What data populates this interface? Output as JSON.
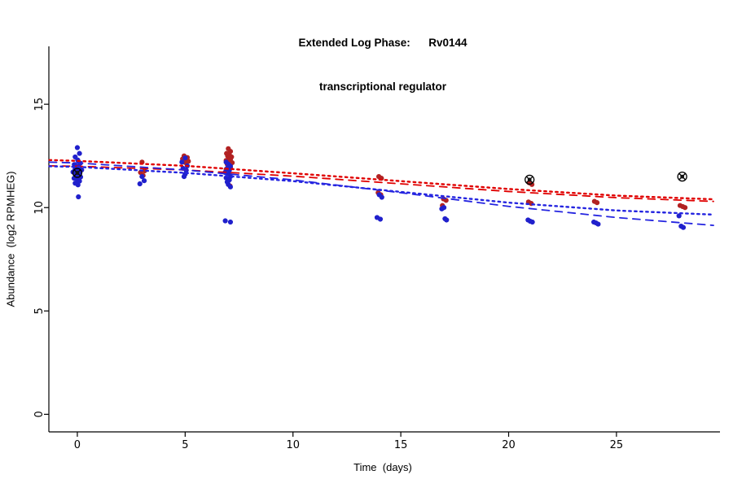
{
  "chart_data": {
    "type": "scatter",
    "title_line1": "Extended Log Phase:      Rv0144",
    "title_line2": "transcriptional regulator",
    "xlabel": "Time  (days)",
    "ylabel": "Abundance  (log2 RPMHEG)",
    "xlim": [
      -1.32,
      29.8
    ],
    "ylim": [
      -0.85,
      17.8
    ],
    "xticks": [
      0,
      5,
      10,
      15,
      20,
      25
    ],
    "yticks": [
      0,
      5,
      10,
      15
    ],
    "grid": false,
    "legend": "none",
    "series": [
      {
        "name": "red-condition-points",
        "color": "#b22222",
        "marker": "dot",
        "points": [
          [
            3,
            12.2
          ],
          [
            3.12,
            11.78
          ],
          [
            2.93,
            11.7
          ],
          [
            3.05,
            11.55
          ],
          [
            4.95,
            12.5
          ],
          [
            5.1,
            12.42
          ],
          [
            4.88,
            12.35
          ],
          [
            5.03,
            12.3
          ],
          [
            5.15,
            12.24
          ],
          [
            5.0,
            12.18
          ],
          [
            7.0,
            12.85
          ],
          [
            7.1,
            12.72
          ],
          [
            6.92,
            12.62
          ],
          [
            7.05,
            12.55
          ],
          [
            6.97,
            12.5
          ],
          [
            7.15,
            12.45
          ],
          [
            7.02,
            12.4
          ],
          [
            7.1,
            12.33
          ],
          [
            6.9,
            12.28
          ],
          [
            7.06,
            12.22
          ],
          [
            7.18,
            12.17
          ],
          [
            6.95,
            12.1
          ],
          [
            7.0,
            12.02
          ],
          [
            7.1,
            11.93
          ],
          [
            6.9,
            11.85
          ],
          [
            7.05,
            11.6
          ],
          [
            7.0,
            11.3
          ],
          [
            7.08,
            11.05
          ],
          [
            13.98,
            11.5
          ],
          [
            14.1,
            11.42
          ],
          [
            13.95,
            10.72
          ],
          [
            14.07,
            10.62
          ],
          [
            16.98,
            10.42
          ],
          [
            17.1,
            10.35
          ],
          [
            16.93,
            10.1
          ],
          [
            20.95,
            11.2
          ],
          [
            21.08,
            11.12
          ],
          [
            20.92,
            10.27
          ],
          [
            21.05,
            10.2
          ],
          [
            23.98,
            10.3
          ],
          [
            24.1,
            10.24
          ],
          [
            27.95,
            10.1
          ],
          [
            28.07,
            10.05
          ],
          [
            28.18,
            10.0
          ]
        ]
      },
      {
        "name": "blue-condition-points",
        "color": "#2020cc",
        "marker": "dot",
        "points": [
          [
            0.0,
            12.9
          ],
          [
            0.1,
            12.62
          ],
          [
            -0.1,
            12.45
          ],
          [
            0.02,
            12.3
          ],
          [
            0.14,
            12.15
          ],
          [
            -0.14,
            12.08
          ],
          [
            0.0,
            12.0
          ],
          [
            0.1,
            11.94
          ],
          [
            -0.1,
            11.88
          ],
          [
            0.2,
            11.82
          ],
          [
            0.0,
            11.77
          ],
          [
            -0.2,
            11.72
          ],
          [
            0.1,
            11.66
          ],
          [
            -0.08,
            11.6
          ],
          [
            0.02,
            11.55
          ],
          [
            0.15,
            11.48
          ],
          [
            -0.15,
            11.42
          ],
          [
            0.0,
            11.36
          ],
          [
            0.1,
            11.28
          ],
          [
            -0.1,
            11.18
          ],
          [
            0.03,
            11.1
          ],
          [
            0.05,
            10.52
          ],
          [
            3.0,
            11.5
          ],
          [
            3.1,
            11.3
          ],
          [
            2.9,
            11.15
          ],
          [
            5.0,
            12.4
          ],
          [
            4.85,
            12.2
          ],
          [
            5.1,
            12.02
          ],
          [
            4.9,
            11.9
          ],
          [
            5.05,
            11.8
          ],
          [
            5.0,
            11.62
          ],
          [
            4.95,
            11.5
          ],
          [
            6.9,
            12.2
          ],
          [
            7.0,
            12.1
          ],
          [
            7.1,
            12.0
          ],
          [
            6.95,
            11.9
          ],
          [
            7.05,
            11.8
          ],
          [
            6.85,
            11.7
          ],
          [
            7.0,
            11.6
          ],
          [
            7.1,
            11.5
          ],
          [
            6.9,
            11.44
          ],
          [
            7.05,
            11.34
          ],
          [
            6.95,
            11.24
          ],
          [
            7.0,
            11.12
          ],
          [
            7.1,
            11.0
          ],
          [
            6.86,
            9.36
          ],
          [
            7.1,
            9.3
          ],
          [
            14.0,
            10.62
          ],
          [
            14.12,
            10.5
          ],
          [
            13.9,
            9.52
          ],
          [
            14.05,
            9.44
          ],
          [
            17.0,
            10.0
          ],
          [
            16.9,
            9.94
          ],
          [
            17.05,
            9.46
          ],
          [
            17.12,
            9.4
          ],
          [
            20.9,
            9.4
          ],
          [
            21.0,
            9.34
          ],
          [
            21.1,
            9.3
          ],
          [
            23.95,
            9.3
          ],
          [
            24.05,
            9.26
          ],
          [
            24.15,
            9.2
          ],
          [
            27.9,
            9.6
          ],
          [
            28.0,
            9.1
          ],
          [
            28.1,
            9.04
          ]
        ]
      },
      {
        "name": "circled-outlier-points",
        "color": "#000000",
        "marker": "circled",
        "points": [
          [
            0.0,
            11.68
          ],
          [
            20.97,
            11.35
          ],
          [
            28.05,
            11.5
          ]
        ]
      }
    ],
    "trend_lines": [
      {
        "name": "red-dotted-fit",
        "color": "#e00000",
        "style": "dotted",
        "x": [
          -1.3,
          0,
          5,
          10,
          15,
          20,
          25,
          29.5
        ],
        "y": [
          12.3,
          12.26,
          12.02,
          11.66,
          11.28,
          10.9,
          10.58,
          10.4
        ]
      },
      {
        "name": "red-dashed-fit",
        "color": "#e00000",
        "style": "dashed",
        "x": [
          -1.3,
          0,
          5,
          10,
          15,
          20,
          25,
          29.5
        ],
        "y": [
          12.02,
          12.0,
          11.82,
          11.52,
          11.15,
          10.78,
          10.48,
          10.3
        ]
      },
      {
        "name": "blue-dotted-fit",
        "color": "#2424e0",
        "style": "dotted",
        "x": [
          -1.3,
          0,
          5,
          10,
          15,
          20,
          25,
          29.5
        ],
        "y": [
          12.0,
          11.97,
          11.68,
          11.28,
          10.76,
          10.24,
          9.86,
          9.66
        ]
      },
      {
        "name": "blue-dashed-fit",
        "color": "#2424e0",
        "style": "dashed",
        "x": [
          -1.3,
          0,
          5,
          10,
          15,
          20,
          25,
          29.5
        ],
        "y": [
          12.2,
          12.16,
          11.82,
          11.34,
          10.72,
          10.06,
          9.52,
          9.14
        ]
      }
    ]
  }
}
